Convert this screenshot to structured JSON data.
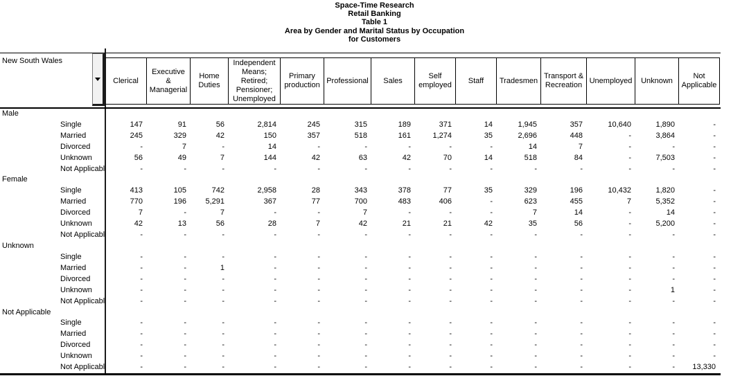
{
  "titles": [
    "Space-Time Research",
    "Retail Banking",
    "Table 1",
    "Area by Gender and Marital Status by Occupation",
    "for Customers"
  ],
  "region": {
    "label": "New South Wales",
    "dropdown_icon": "chevron-down-icon"
  },
  "columns": [
    "Clerical",
    "Executive & Managerial",
    "Home Duties",
    "Independent Means; Retired; Pensioner; Unemployed",
    "Primary production",
    "Professional",
    "Sales",
    "Self employed",
    "Staff",
    "Tradesmen",
    "Transport & Recreation",
    "Unemployed",
    "Unknown",
    "Not Applicable"
  ],
  "groups": [
    {
      "label": "Male",
      "rows": [
        {
          "label": "Single",
          "values": [
            "147",
            "91",
            "56",
            "2,814",
            "245",
            "315",
            "189",
            "371",
            "14",
            "1,945",
            "357",
            "10,640",
            "1,890",
            "-"
          ]
        },
        {
          "label": "Married",
          "values": [
            "245",
            "329",
            "42",
            "150",
            "357",
            "518",
            "161",
            "1,274",
            "35",
            "2,696",
            "448",
            "-",
            "3,864",
            "-"
          ]
        },
        {
          "label": "Divorced",
          "values": [
            "-",
            "7",
            "-",
            "14",
            "-",
            "-",
            "-",
            "-",
            "-",
            "14",
            "7",
            "-",
            "-",
            "-"
          ]
        },
        {
          "label": "Unknown",
          "values": [
            "56",
            "49",
            "7",
            "144",
            "42",
            "63",
            "42",
            "70",
            "14",
            "518",
            "84",
            "-",
            "7,503",
            "-"
          ]
        },
        {
          "label": "Not Applicable",
          "values": [
            "-",
            "-",
            "-",
            "-",
            "-",
            "-",
            "-",
            "-",
            "-",
            "-",
            "-",
            "-",
            "-",
            "-"
          ]
        }
      ]
    },
    {
      "label": "Female",
      "rows": [
        {
          "label": "Single",
          "values": [
            "413",
            "105",
            "742",
            "2,958",
            "28",
            "343",
            "378",
            "77",
            "35",
            "329",
            "196",
            "10,432",
            "1,820",
            "-"
          ]
        },
        {
          "label": "Married",
          "values": [
            "770",
            "196",
            "5,291",
            "367",
            "77",
            "700",
            "483",
            "406",
            "-",
            "623",
            "455",
            "7",
            "5,352",
            "-"
          ]
        },
        {
          "label": "Divorced",
          "values": [
            "7",
            "-",
            "7",
            "-",
            "-",
            "7",
            "-",
            "-",
            "-",
            "7",
            "14",
            "-",
            "14",
            "-"
          ]
        },
        {
          "label": "Unknown",
          "values": [
            "42",
            "13",
            "56",
            "28",
            "7",
            "42",
            "21",
            "21",
            "42",
            "35",
            "56",
            "-",
            "5,200",
            "-"
          ]
        },
        {
          "label": "Not Applicable",
          "values": [
            "-",
            "-",
            "-",
            "-",
            "-",
            "-",
            "-",
            "-",
            "-",
            "-",
            "-",
            "-",
            "-",
            "-"
          ]
        }
      ]
    },
    {
      "label": "Unknown",
      "rows": [
        {
          "label": "Single",
          "values": [
            "-",
            "-",
            "-",
            "-",
            "-",
            "-",
            "-",
            "-",
            "-",
            "-",
            "-",
            "-",
            "-",
            "-"
          ]
        },
        {
          "label": "Married",
          "values": [
            "-",
            "-",
            "1",
            "-",
            "-",
            "-",
            "-",
            "-",
            "-",
            "-",
            "-",
            "-",
            "-",
            "-"
          ]
        },
        {
          "label": "Divorced",
          "values": [
            "-",
            "-",
            "-",
            "-",
            "-",
            "-",
            "-",
            "-",
            "-",
            "-",
            "-",
            "-",
            "-",
            "-"
          ]
        },
        {
          "label": "Unknown",
          "values": [
            "-",
            "-",
            "-",
            "-",
            "-",
            "-",
            "-",
            "-",
            "-",
            "-",
            "-",
            "-",
            "1",
            "-"
          ]
        },
        {
          "label": "Not Applicable",
          "values": [
            "-",
            "-",
            "-",
            "-",
            "-",
            "-",
            "-",
            "-",
            "-",
            "-",
            "-",
            "-",
            "-",
            "-"
          ]
        }
      ]
    },
    {
      "label": "Not Applicable",
      "rows": [
        {
          "label": "Single",
          "values": [
            "-",
            "-",
            "-",
            "-",
            "-",
            "-",
            "-",
            "-",
            "-",
            "-",
            "-",
            "-",
            "-",
            "-"
          ]
        },
        {
          "label": "Married",
          "values": [
            "-",
            "-",
            "-",
            "-",
            "-",
            "-",
            "-",
            "-",
            "-",
            "-",
            "-",
            "-",
            "-",
            "-"
          ]
        },
        {
          "label": "Divorced",
          "values": [
            "-",
            "-",
            "-",
            "-",
            "-",
            "-",
            "-",
            "-",
            "-",
            "-",
            "-",
            "-",
            "-",
            "-"
          ]
        },
        {
          "label": "Unknown",
          "values": [
            "-",
            "-",
            "-",
            "-",
            "-",
            "-",
            "-",
            "-",
            "-",
            "-",
            "-",
            "-",
            "-",
            "-"
          ]
        },
        {
          "label": "Not Applicable",
          "values": [
            "-",
            "-",
            "-",
            "-",
            "-",
            "-",
            "-",
            "-",
            "-",
            "-",
            "-",
            "-",
            "-",
            "13,330"
          ]
        }
      ]
    }
  ]
}
